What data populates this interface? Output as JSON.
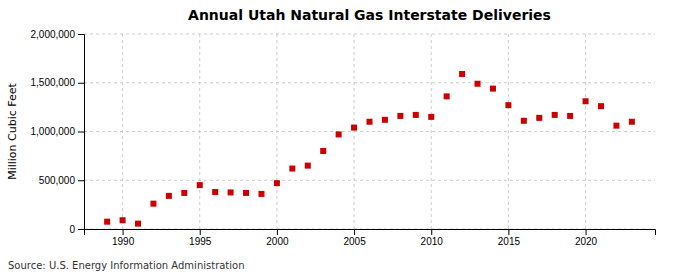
{
  "chart_data": {
    "type": "scatter",
    "title": "Annual Utah Natural Gas Interstate Deliveries",
    "ylabel": "Million Cubic Feet",
    "source": "Source: U.S. Energy Information Administration",
    "x": [
      1989,
      1990,
      1991,
      1992,
      1993,
      1994,
      1995,
      1996,
      1997,
      1998,
      1999,
      2000,
      2001,
      2002,
      2003,
      2004,
      2005,
      2006,
      2007,
      2008,
      2009,
      2010,
      2011,
      2012,
      2013,
      2014,
      2015,
      2016,
      2017,
      2018,
      2019,
      2020,
      2021,
      2022,
      2023
    ],
    "values": [
      75000,
      90000,
      55000,
      260000,
      340000,
      370000,
      450000,
      380000,
      375000,
      370000,
      360000,
      470000,
      620000,
      650000,
      800000,
      970000,
      1040000,
      1100000,
      1120000,
      1160000,
      1170000,
      1150000,
      1360000,
      1590000,
      1490000,
      1440000,
      1270000,
      1110000,
      1140000,
      1170000,
      1160000,
      1310000,
      1260000,
      1060000,
      1100000
    ],
    "color": "#cc0000",
    "marker": "square",
    "xlim": [
      1987.5,
      2024.5
    ],
    "ylim": [
      0,
      2000000
    ],
    "xticks": [
      1990,
      1995,
      2000,
      2005,
      2010,
      2015,
      2020
    ],
    "yticks": [
      0,
      {
        "value": 500000,
        "label": "500,000"
      },
      {
        "value": 1000000,
        "label": "1,000,000"
      },
      {
        "value": 1500000,
        "label": "1,500,000"
      },
      {
        "value": 2000000,
        "label": "2,000,000"
      }
    ],
    "grid": true
  }
}
